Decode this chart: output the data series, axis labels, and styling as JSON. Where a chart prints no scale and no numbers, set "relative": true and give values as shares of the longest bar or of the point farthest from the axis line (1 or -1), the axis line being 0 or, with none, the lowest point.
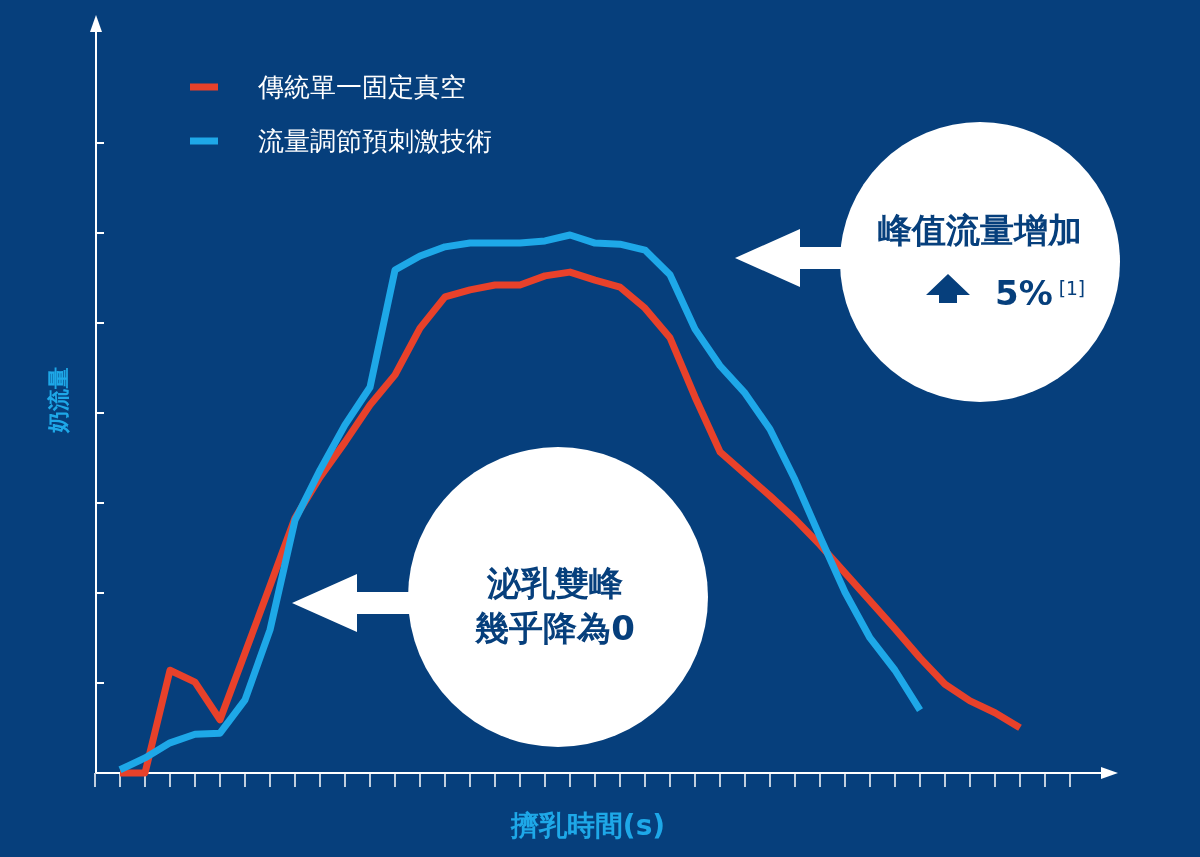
{
  "chart_data": {
    "type": "line",
    "relative": true,
    "xlabel": "擠乳時間(s)",
    "ylabel": "奶流量",
    "legend": "top left",
    "categories": [
      null,
      null,
      null,
      null,
      null,
      null,
      null,
      null,
      null,
      null,
      null,
      null,
      null,
      null,
      null,
      null,
      null,
      null,
      null,
      null,
      null,
      null,
      null,
      null,
      null,
      null,
      null,
      null,
      null,
      null,
      null,
      null,
      null,
      null,
      null,
      null,
      null
    ],
    "series": [
      {
        "name": "傳統單一固定真空",
        "color": "#e8412a",
        "values": [
          0,
          0,
          0.191,
          0.169,
          0.099,
          0.223,
          0.348,
          0.474,
          0.55,
          0.615,
          0.684,
          0.74,
          0.827,
          0.885,
          0.898,
          0.907,
          0.907,
          0.924,
          0.931,
          0.916,
          0.903,
          0.864,
          0.809,
          0.699,
          0.597,
          0.556,
          0.515,
          0.472,
          0.424,
          0.372,
          0.32,
          0.268,
          0.214,
          0.165,
          0.134,
          0.112,
          0.084
        ]
      },
      {
        "name": "流量調節預刺激技術",
        "color": "#1ea8e8",
        "values": [
          0.006,
          0.028,
          0.056,
          0.072,
          0.074,
          0.136,
          0.266,
          0.47,
          0.563,
          0.647,
          0.717,
          0.935,
          0.961,
          0.978,
          0.985,
          0.985,
          0.985,
          0.989,
          1,
          0.985,
          0.983,
          0.972,
          0.926,
          0.825,
          0.757,
          0.706,
          0.639,
          0.545,
          0.439,
          0.336,
          0.251,
          0.191,
          0.117,
          null,
          null,
          null,
          null
        ]
      }
    ],
    "annotations": [
      "峰值流量增加",
      "5%$^{[1]}$",
      "泌乳雙峰",
      "幾乎降為0"
    ]
  }
}
